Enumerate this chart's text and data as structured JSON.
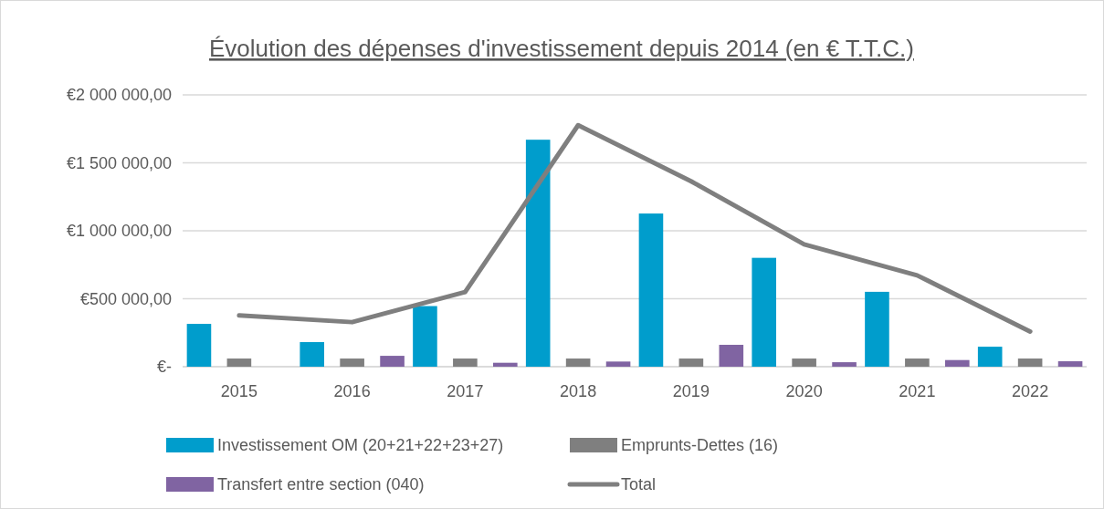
{
  "chart_data": {
    "type": "bar",
    "title": "Évolution des dépenses d'investissement depuis 2014 (en € T.T.C.)",
    "categories": [
      "2015",
      "2016",
      "2017",
      "2018",
      "2019",
      "2020",
      "2021",
      "2022"
    ],
    "series": [
      {
        "name": "Investissement OM (20+21+22+23+27)",
        "color": "#009dcc",
        "values": [
          315000,
          181000,
          446000,
          1670000,
          1127000,
          801000,
          551000,
          147000
        ]
      },
      {
        "name": "Emprunts-Dettes (16)",
        "color": "#7f7f7f",
        "values": [
          60000,
          60000,
          60000,
          60000,
          60000,
          60000,
          60000,
          60000
        ]
      },
      {
        "name": "Transfert entre section (040)",
        "color": "#8064a2",
        "values": [
          null,
          80000,
          29000,
          38000,
          161000,
          33000,
          49000,
          40000
        ]
      },
      {
        "name": "Total",
        "type": "line",
        "color": "#7f7f7f",
        "values": [
          377000,
          328000,
          549000,
          1777000,
          1364000,
          900000,
          672000,
          259000
        ]
      }
    ],
    "ylim": [
      0,
      2000000
    ],
    "yticks": [
      {
        "value": 0,
        "label": "€-"
      },
      {
        "value": 500000,
        "label": "€500 000,00"
      },
      {
        "value": 1000000,
        "label": "€1 000 000,00"
      },
      {
        "value": 1500000,
        "label": "€1 500 000,00"
      },
      {
        "value": 2000000,
        "label": "€2 000 000,00"
      }
    ],
    "grid": "y",
    "legend": "bottom",
    "marker": "none"
  }
}
